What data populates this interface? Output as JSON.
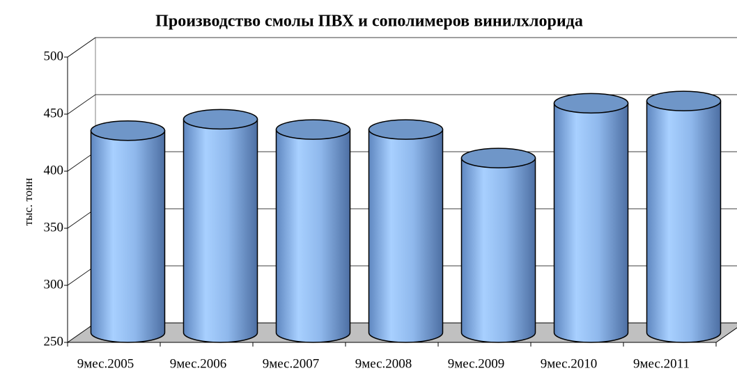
{
  "chart_data": {
    "type": "bar3d",
    "title": "Производство смолы ПВХ и сополимеров винилхлорида",
    "y_label": "тыс. тонн",
    "categories": [
      "9мес.2005",
      "9мес.2006",
      "9мес.2007",
      "9мес.2008",
      "9мес.2009",
      "9мес.2010",
      "9мес.2011"
    ],
    "values": [
      427,
      437,
      428,
      428,
      403,
      451,
      453
    ],
    "color": "#8fb8ec",
    "ylim": [
      250,
      500
    ],
    "yticks": [
      250,
      300,
      350,
      400,
      450,
      500
    ],
    "grid": true
  }
}
